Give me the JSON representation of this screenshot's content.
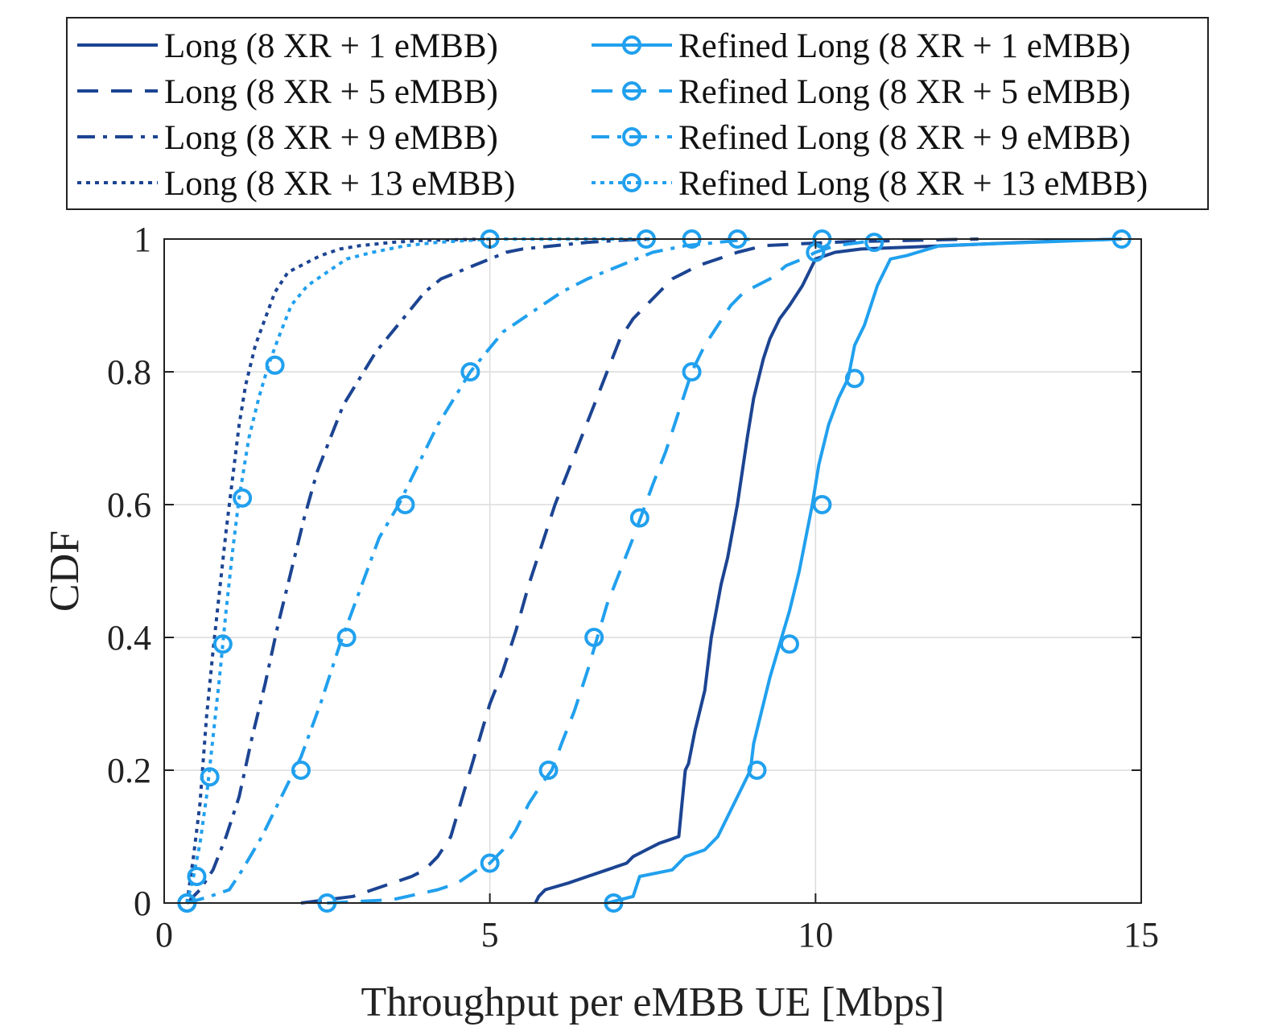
{
  "chart_data": {
    "type": "line",
    "title": "",
    "xlabel": "Throughput per eMBB UE [Mbps]",
    "ylabel": "CDF",
    "xlim": [
      0,
      15
    ],
    "ylim": [
      0,
      1
    ],
    "xticks": [
      0,
      5,
      10,
      15
    ],
    "xtick_labels": [
      "0",
      "5",
      "10",
      "15"
    ],
    "yticks": [
      0,
      0.2,
      0.4,
      0.6,
      0.8,
      1
    ],
    "ytick_labels": [
      "0",
      "0.2",
      "0.4",
      "0.6",
      "0.8",
      "1"
    ],
    "grid": true,
    "legend_position": "top (above axes)",
    "colors": {
      "dark": "#1c4492",
      "light": "#21a0ee",
      "grid": "#dcdcdc",
      "axis": "#222222"
    },
    "series": [
      {
        "name": "Long (8 XR + 1 eMBB)",
        "style": "solid",
        "color": "#1c4492",
        "markers": false,
        "x": [
          5.7,
          5.75,
          5.85,
          6.2,
          6.5,
          6.8,
          7.1,
          7.2,
          7.4,
          7.6,
          7.9,
          7.95,
          8.0,
          8.05,
          8.15,
          8.2,
          8.3,
          8.4,
          8.55,
          8.65,
          8.8,
          8.95,
          9.05,
          9.15,
          9.2,
          9.3,
          9.45,
          9.6,
          9.8,
          9.9,
          10.0,
          10.3,
          10.7,
          12.0,
          13.2,
          14.0,
          14.7
        ],
        "y": [
          0.0,
          0.01,
          0.02,
          0.03,
          0.04,
          0.05,
          0.06,
          0.07,
          0.08,
          0.09,
          0.1,
          0.15,
          0.2,
          0.21,
          0.26,
          0.28,
          0.32,
          0.4,
          0.48,
          0.52,
          0.6,
          0.7,
          0.76,
          0.8,
          0.82,
          0.85,
          0.88,
          0.9,
          0.93,
          0.95,
          0.97,
          0.98,
          0.985,
          0.99,
          0.995,
          0.998,
          1.0
        ]
      },
      {
        "name": "Long (8 XR + 5 eMBB)",
        "style": "dashed",
        "color": "#1c4492",
        "markers": false,
        "x": [
          2.1,
          2.5,
          2.9,
          3.2,
          3.5,
          3.8,
          4.0,
          4.2,
          4.4,
          4.55,
          4.7,
          4.85,
          5.0,
          5.2,
          5.4,
          5.6,
          5.8,
          6.0,
          6.2,
          6.4,
          6.6,
          6.8,
          7.0,
          7.2,
          7.4,
          7.6,
          7.8,
          8.0,
          8.2,
          8.5,
          8.8,
          9.2,
          9.8,
          10.5,
          11.5,
          12.5
        ],
        "y": [
          0.0,
          0.005,
          0.01,
          0.02,
          0.03,
          0.04,
          0.05,
          0.07,
          0.1,
          0.15,
          0.2,
          0.25,
          0.3,
          0.35,
          0.41,
          0.48,
          0.54,
          0.6,
          0.65,
          0.7,
          0.75,
          0.8,
          0.85,
          0.88,
          0.9,
          0.92,
          0.94,
          0.95,
          0.96,
          0.97,
          0.98,
          0.99,
          0.993,
          0.996,
          0.998,
          1.0
        ]
      },
      {
        "name": "Long (8 XR + 9 eMBB)",
        "style": "dash-dot",
        "color": "#1c4492",
        "markers": false,
        "x": [
          0.35,
          0.55,
          0.75,
          0.95,
          1.15,
          1.35,
          1.55,
          1.75,
          1.95,
          2.15,
          2.35,
          2.55,
          2.75,
          3.0,
          3.25,
          3.5,
          3.75,
          4.0,
          4.25,
          4.5,
          4.75,
          5.0,
          5.25,
          5.5,
          6.0,
          6.5,
          7.0,
          7.5
        ],
        "y": [
          0.0,
          0.02,
          0.05,
          0.1,
          0.16,
          0.25,
          0.33,
          0.42,
          0.5,
          0.58,
          0.65,
          0.7,
          0.75,
          0.79,
          0.83,
          0.86,
          0.89,
          0.92,
          0.94,
          0.95,
          0.96,
          0.97,
          0.98,
          0.985,
          0.99,
          0.995,
          0.998,
          1.0
        ]
      },
      {
        "name": "Long (8 XR + 13 eMBB)",
        "style": "dotted",
        "color": "#1c4492",
        "markers": false,
        "x": [
          0.35,
          0.45,
          0.55,
          0.65,
          0.75,
          0.85,
          0.95,
          1.05,
          1.15,
          1.25,
          1.4,
          1.55,
          1.7,
          1.9,
          2.1,
          2.4,
          2.7,
          3.0,
          3.5,
          4.0,
          4.5,
          5.0
        ],
        "y": [
          0.0,
          0.07,
          0.15,
          0.28,
          0.38,
          0.47,
          0.56,
          0.64,
          0.72,
          0.78,
          0.84,
          0.88,
          0.92,
          0.95,
          0.96,
          0.975,
          0.985,
          0.99,
          0.995,
          0.998,
          0.999,
          1.0
        ]
      },
      {
        "name": "Refined Long (8 XR + 1 eMBB)",
        "style": "solid",
        "color": "#21a0ee",
        "markers": true,
        "x": [
          6.8,
          7.2,
          7.3,
          7.8,
          8.0,
          8.3,
          8.5,
          8.7,
          8.85,
          9.0,
          9.05,
          9.15,
          9.3,
          9.45,
          9.6,
          9.75,
          9.85,
          9.95,
          10.05,
          10.2,
          10.35,
          10.5,
          10.6,
          10.75,
          10.85,
          10.95,
          11.05,
          11.15,
          11.4,
          11.9,
          14.7
        ],
        "y": [
          0.0,
          0.01,
          0.04,
          0.05,
          0.07,
          0.08,
          0.1,
          0.14,
          0.17,
          0.2,
          0.24,
          0.28,
          0.34,
          0.39,
          0.44,
          0.5,
          0.55,
          0.6,
          0.66,
          0.72,
          0.76,
          0.79,
          0.84,
          0.87,
          0.9,
          0.93,
          0.95,
          0.97,
          0.975,
          0.99,
          1.0
        ]
      },
      {
        "name": "Refined Long (8 XR + 5 eMBB)",
        "style": "dashed",
        "color": "#21a0ee",
        "markers": true,
        "x": [
          2.5,
          3.5,
          4.2,
          4.5,
          4.8,
          5.0,
          5.2,
          5.4,
          5.6,
          5.8,
          5.95,
          6.1,
          6.3,
          6.5,
          6.65,
          6.8,
          7.0,
          7.2,
          7.35,
          7.5,
          7.7,
          7.9,
          8.1,
          8.3,
          8.5,
          8.7,
          8.9,
          9.1,
          9.3,
          9.55,
          9.8,
          10.0,
          10.3,
          10.7,
          11.0
        ],
        "y": [
          0.0,
          0.005,
          0.02,
          0.03,
          0.05,
          0.06,
          0.08,
          0.11,
          0.15,
          0.18,
          0.2,
          0.24,
          0.29,
          0.35,
          0.4,
          0.45,
          0.5,
          0.55,
          0.59,
          0.63,
          0.68,
          0.74,
          0.8,
          0.84,
          0.87,
          0.9,
          0.92,
          0.93,
          0.94,
          0.96,
          0.97,
          0.98,
          0.99,
          0.995,
          1.0
        ]
      },
      {
        "name": "Refined Long (8 XR + 9 eMBB)",
        "style": "dash-dot",
        "color": "#21a0ee",
        "markers": true,
        "x": [
          0.35,
          0.7,
          1.0,
          1.2,
          1.5,
          1.8,
          2.1,
          2.4,
          2.7,
          3.0,
          3.3,
          3.6,
          3.9,
          4.2,
          4.45,
          4.7,
          4.95,
          5.2,
          5.5,
          5.8,
          6.1,
          6.5,
          7.0,
          7.5,
          8.0,
          8.5,
          9.0
        ],
        "y": [
          0.0,
          0.01,
          0.02,
          0.05,
          0.1,
          0.16,
          0.22,
          0.3,
          0.39,
          0.47,
          0.55,
          0.6,
          0.66,
          0.72,
          0.76,
          0.8,
          0.83,
          0.86,
          0.88,
          0.9,
          0.92,
          0.94,
          0.96,
          0.98,
          0.99,
          0.995,
          1.0
        ]
      },
      {
        "name": "Refined Long (8 XR + 13 eMBB)",
        "style": "dotted",
        "color": "#21a0ee",
        "markers": true,
        "x": [
          0.35,
          0.45,
          0.55,
          0.65,
          0.75,
          0.85,
          0.95,
          1.05,
          1.15,
          1.3,
          1.45,
          1.6,
          1.75,
          1.95,
          2.2,
          2.5,
          2.8,
          3.2,
          3.7,
          4.2,
          4.7,
          5.0,
          7.5
        ],
        "y": [
          0.0,
          0.04,
          0.09,
          0.16,
          0.25,
          0.34,
          0.44,
          0.53,
          0.61,
          0.7,
          0.76,
          0.81,
          0.85,
          0.9,
          0.93,
          0.95,
          0.97,
          0.98,
          0.99,
          0.995,
          0.998,
          1.0,
          1.0
        ]
      }
    ],
    "markers": [
      {
        "series": 4,
        "x": [
          6.9,
          9.1,
          9.6,
          10.1,
          10.6,
          14.7
        ],
        "y": [
          0.0,
          0.2,
          0.39,
          0.6,
          0.79,
          1.0
        ]
      },
      {
        "series": 5,
        "x": [
          2.5,
          5.0,
          5.9,
          6.6,
          7.3,
          8.1,
          10.0,
          10.9
        ],
        "y": [
          0.0,
          0.06,
          0.2,
          0.4,
          0.58,
          0.8,
          0.98,
          0.995
        ]
      },
      {
        "series": 6,
        "x": [
          0.35,
          2.1,
          2.8,
          3.7,
          4.7,
          8.8
        ],
        "y": [
          0.0,
          0.2,
          0.4,
          0.6,
          0.8,
          1.0
        ]
      },
      {
        "series": 7,
        "x": [
          0.35,
          0.5,
          0.7,
          0.9,
          1.2,
          1.7,
          5.0,
          7.4,
          8.1,
          10.1
        ],
        "y": [
          0.0,
          0.04,
          0.19,
          0.39,
          0.61,
          0.81,
          1.0,
          1.0,
          1.0,
          1.0
        ]
      }
    ]
  }
}
